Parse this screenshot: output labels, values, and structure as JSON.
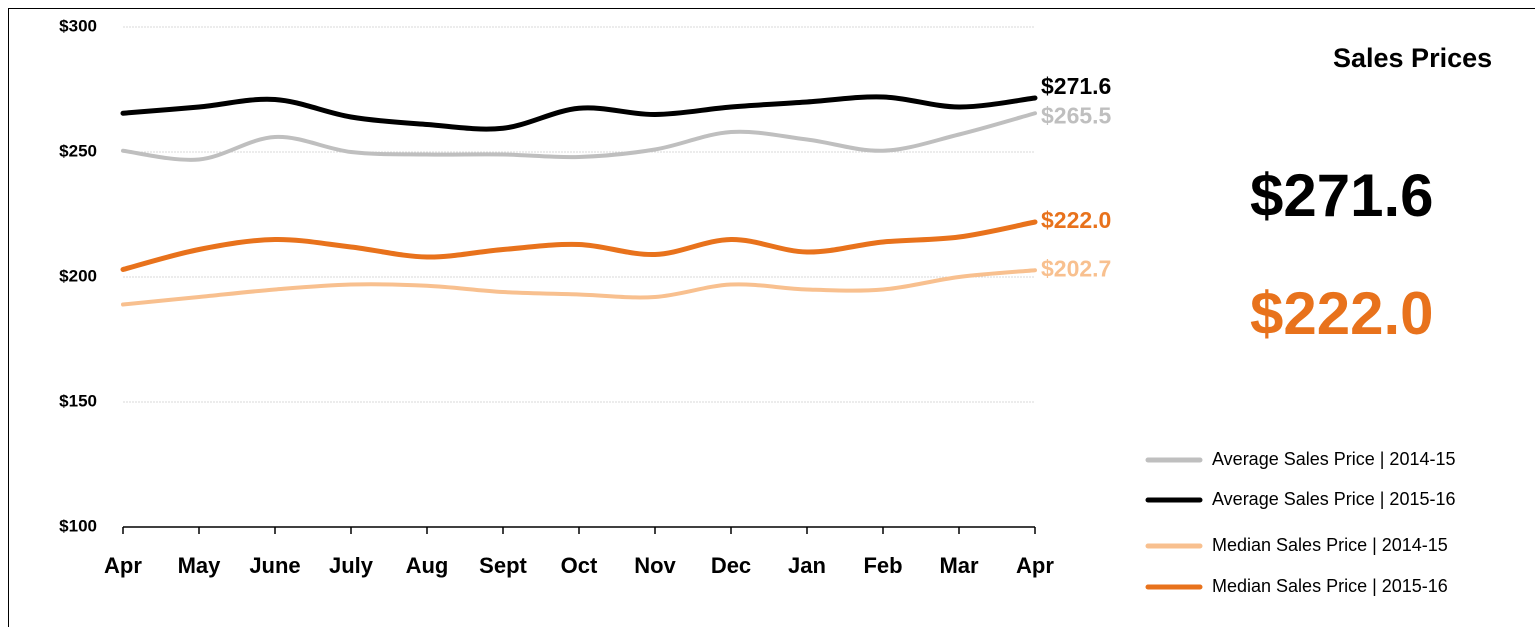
{
  "chart_data": {
    "type": "line",
    "title": "Sales Prices",
    "categories": [
      "Apr",
      "May",
      "June",
      "July",
      "Aug",
      "Sept",
      "Oct",
      "Nov",
      "Dec",
      "Jan",
      "Feb",
      "Mar",
      "Apr"
    ],
    "series": [
      {
        "name": "Average Sales Price | 2014-15",
        "color": "#bfbfbf",
        "values": [
          250.5,
          247,
          256,
          250,
          249,
          249,
          248,
          251,
          258,
          255,
          250.5,
          257,
          265.5
        ],
        "value_labels": [
          null,
          null,
          null,
          null,
          null,
          null,
          null,
          null,
          null,
          null,
          null,
          null,
          "$265.5"
        ]
      },
      {
        "name": "Average Sales Price | 2015-16",
        "color": "#000000",
        "values": [
          265.5,
          268,
          271,
          264,
          261,
          259.5,
          267.5,
          265,
          268,
          270,
          272,
          268,
          271.6
        ],
        "value_labels": [
          null,
          null,
          null,
          null,
          null,
          null,
          null,
          null,
          null,
          null,
          null,
          null,
          "$271.6"
        ]
      },
      {
        "name": "Median Sales Price | 2014-15",
        "color": "#f8c08f",
        "values": [
          189,
          192,
          195,
          197,
          196.5,
          194,
          193,
          192,
          197,
          195,
          195,
          200,
          202.7
        ],
        "value_labels": [
          null,
          null,
          null,
          null,
          null,
          null,
          null,
          null,
          null,
          null,
          null,
          null,
          "$202.7"
        ]
      },
      {
        "name": "Median Sales Price | 2015-16",
        "color": "#e8721c",
        "values": [
          203,
          211,
          215,
          212,
          208,
          211,
          213,
          209,
          215,
          210,
          214,
          216,
          222.0
        ],
        "value_labels": [
          null,
          null,
          null,
          null,
          null,
          null,
          null,
          null,
          null,
          null,
          null,
          null,
          "$222.0"
        ]
      }
    ],
    "ylim": [
      100,
      300
    ],
    "yticks": [
      {
        "value": 100,
        "label": "$100"
      },
      {
        "value": 150,
        "label": "$150"
      },
      {
        "value": 200,
        "label": "$200"
      },
      {
        "value": 250,
        "label": "$250"
      },
      {
        "value": 300,
        "label": "$300"
      }
    ],
    "grid": true
  }
}
